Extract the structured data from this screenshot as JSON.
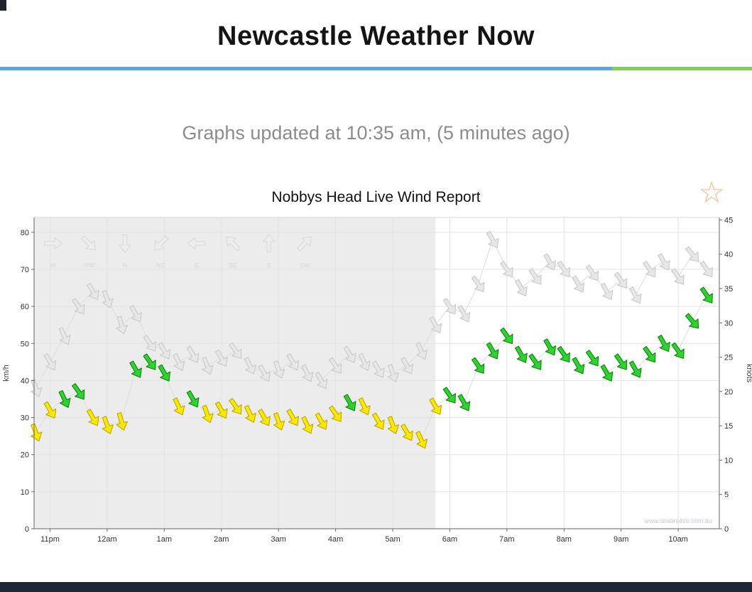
{
  "page": {
    "title": "Newcastle Weather Now",
    "updated_text": "Graphs updated at 10:35 am, (5 minutes ago)"
  },
  "icons": {
    "favorite_star": "☆"
  },
  "colors": {
    "divider_blue": "#63a1e2",
    "divider_green": "#85c96a",
    "bottom_bar": "#1d2937",
    "night_shade": "#ececec",
    "grid": "#e3e3e3",
    "axis": "#666666",
    "connector": "#dedede",
    "gust_fill": "#e7e7e7",
    "gust_stroke": "#cccccc",
    "avg_low_fill": "#ffe800",
    "avg_low_stroke": "#bfae00",
    "avg_high_fill": "#2fd32f",
    "avg_high_stroke": "#128a12",
    "legend_fill": "#ededed",
    "legend_stroke": "#dcdcdc",
    "legend_text": "#d6d6d6",
    "watermark_text": "#c2ccd8",
    "tick_text": "#333333"
  },
  "chart_data": {
    "type": "scatter",
    "title": "Nobbys Head Live Wind Report",
    "ylabel_left": "km/h",
    "ylabel_right": "knots",
    "x_tick_labels": [
      "11pm",
      "12am",
      "1am",
      "2am",
      "3am",
      "4am",
      "5am",
      "6am",
      "7am",
      "8am",
      "9am",
      "10am"
    ],
    "x_tick_hours": [
      23,
      24,
      25,
      26,
      27,
      28,
      29,
      30,
      31,
      32,
      33,
      34
    ],
    "yticks_kmh": [
      0,
      10,
      20,
      30,
      40,
      50,
      60,
      70,
      80
    ],
    "yticks_knots": [
      0,
      5,
      10,
      15,
      20,
      25,
      30,
      35,
      40,
      45
    ],
    "ylim_kmh": [
      0,
      84
    ],
    "knots_to_kmh": 1.852,
    "night_shade_end_hour": 29.75,
    "green_threshold_kmh": 34,
    "direction_legend": [
      "W",
      "NW",
      "N",
      "NE",
      "E",
      "SE",
      "S",
      "SW"
    ],
    "watermark": "www.seabreeze.com.au",
    "points": [
      {
        "time": "22:45",
        "avg": 26,
        "gust": 38,
        "dir": 160
      },
      {
        "time": "23:00",
        "avg": 32,
        "gust": 45,
        "dir": 150
      },
      {
        "time": "23:15",
        "avg": 35,
        "gust": 52,
        "dir": 155
      },
      {
        "time": "23:30",
        "avg": 37,
        "gust": 60,
        "dir": 145
      },
      {
        "time": "23:45",
        "avg": 30,
        "gust": 64,
        "dir": 150
      },
      {
        "time": "00:00",
        "avg": 28,
        "gust": 62,
        "dir": 160
      },
      {
        "time": "00:15",
        "avg": 29,
        "gust": 55,
        "dir": 165
      },
      {
        "time": "00:30",
        "avg": 43,
        "gust": 58,
        "dir": 150
      },
      {
        "time": "00:45",
        "avg": 45,
        "gust": 50,
        "dir": 145
      },
      {
        "time": "01:00",
        "avg": 42,
        "gust": 48,
        "dir": 150
      },
      {
        "time": "01:15",
        "avg": 33,
        "gust": 45,
        "dir": 155
      },
      {
        "time": "01:30",
        "avg": 35,
        "gust": 47,
        "dir": 150
      },
      {
        "time": "01:45",
        "avg": 31,
        "gust": 44,
        "dir": 160
      },
      {
        "time": "02:00",
        "avg": 32,
        "gust": 46,
        "dir": 150
      },
      {
        "time": "02:15",
        "avg": 33,
        "gust": 48,
        "dir": 145
      },
      {
        "time": "02:30",
        "avg": 31,
        "gust": 44,
        "dir": 155
      },
      {
        "time": "02:45",
        "avg": 30,
        "gust": 42,
        "dir": 150
      },
      {
        "time": "03:00",
        "avg": 29,
        "gust": 43,
        "dir": 160
      },
      {
        "time": "03:15",
        "avg": 30,
        "gust": 45,
        "dir": 150
      },
      {
        "time": "03:30",
        "avg": 28,
        "gust": 42,
        "dir": 155
      },
      {
        "time": "03:45",
        "avg": 29,
        "gust": 40,
        "dir": 150
      },
      {
        "time": "04:00",
        "avg": 31,
        "gust": 44,
        "dir": 145
      },
      {
        "time": "04:15",
        "avg": 34,
        "gust": 47,
        "dir": 150
      },
      {
        "time": "04:30",
        "avg": 33,
        "gust": 45,
        "dir": 155
      },
      {
        "time": "04:45",
        "avg": 29,
        "gust": 43,
        "dir": 150
      },
      {
        "time": "05:00",
        "avg": 28,
        "gust": 42,
        "dir": 160
      },
      {
        "time": "05:15",
        "avg": 26,
        "gust": 44,
        "dir": 150
      },
      {
        "time": "05:30",
        "avg": 24,
        "gust": 48,
        "dir": 155
      },
      {
        "time": "05:45",
        "avg": 33,
        "gust": 55,
        "dir": 150
      },
      {
        "time": "06:00",
        "avg": 36,
        "gust": 60,
        "dir": 145
      },
      {
        "time": "06:15",
        "avg": 34,
        "gust": 58,
        "dir": 150
      },
      {
        "time": "06:30",
        "avg": 44,
        "gust": 66,
        "dir": 145
      },
      {
        "time": "06:45",
        "avg": 48,
        "gust": 78,
        "dir": 150
      },
      {
        "time": "07:00",
        "avg": 52,
        "gust": 70,
        "dir": 145
      },
      {
        "time": "07:15",
        "avg": 47,
        "gust": 65,
        "dir": 150
      },
      {
        "time": "07:30",
        "avg": 45,
        "gust": 68,
        "dir": 145
      },
      {
        "time": "07:45",
        "avg": 49,
        "gust": 72,
        "dir": 150
      },
      {
        "time": "08:00",
        "avg": 47,
        "gust": 70,
        "dir": 145
      },
      {
        "time": "08:15",
        "avg": 44,
        "gust": 66,
        "dir": 150
      },
      {
        "time": "08:30",
        "avg": 46,
        "gust": 69,
        "dir": 145
      },
      {
        "time": "08:45",
        "avg": 42,
        "gust": 64,
        "dir": 150
      },
      {
        "time": "09:00",
        "avg": 45,
        "gust": 67,
        "dir": 145
      },
      {
        "time": "09:15",
        "avg": 43,
        "gust": 63,
        "dir": 150
      },
      {
        "time": "09:30",
        "avg": 47,
        "gust": 70,
        "dir": 145
      },
      {
        "time": "09:45",
        "avg": 50,
        "gust": 72,
        "dir": 150
      },
      {
        "time": "10:00",
        "avg": 48,
        "gust": 68,
        "dir": 145
      },
      {
        "time": "10:15",
        "avg": 56,
        "gust": 74,
        "dir": 140
      },
      {
        "time": "10:30",
        "avg": 63,
        "gust": 70,
        "dir": 145
      }
    ]
  }
}
